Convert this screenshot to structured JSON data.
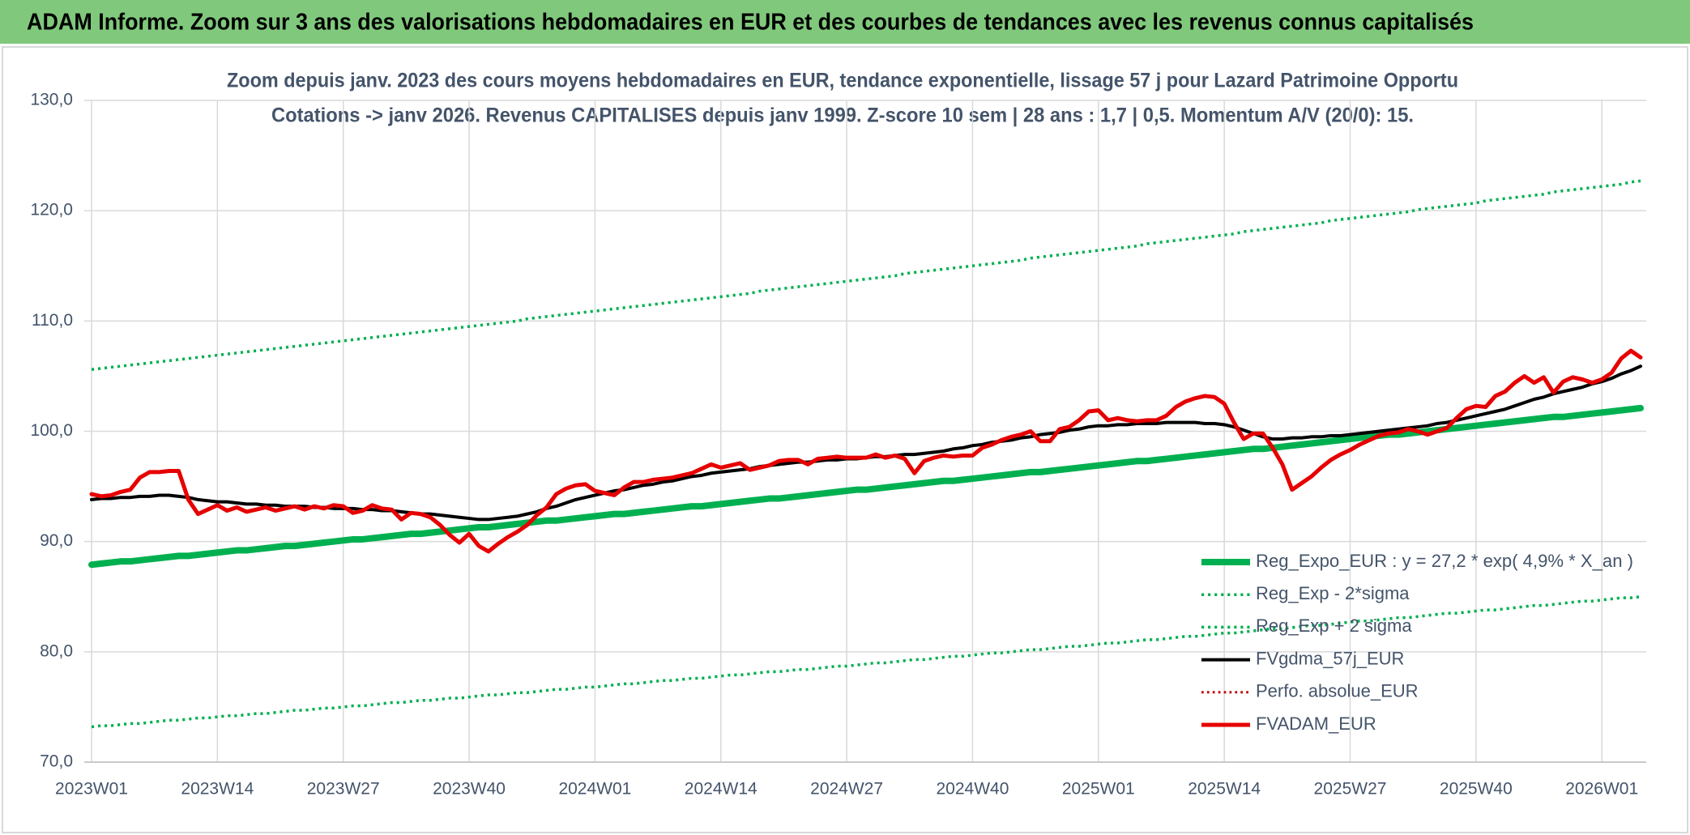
{
  "header": {
    "title": "ADAM Informe. Zoom sur 3 ans des valorisations hebdomadaires en EUR et des courbes de tendances avec les revenus connus capitalisés"
  },
  "chart_data": {
    "type": "line",
    "title": "Zoom depuis janv. 2023 des cours moyens hebdomadaires en EUR, tendance exponentielle, lissage 57 j pour Lazard Patrimoine Opportu",
    "subtitle": "Cotations -> janv 2026. Revenus CAPITALISES depuis janv 1999. Z-score 10 sem | 28 ans : 1,7 | 0,5. Momentum A/V (20/0): 15.",
    "categories": [
      "2023W01",
      null,
      null,
      null,
      null,
      null,
      null,
      null,
      null,
      null,
      null,
      null,
      null,
      "2023W14",
      null,
      null,
      null,
      null,
      null,
      null,
      null,
      null,
      null,
      null,
      null,
      null,
      "2023W27",
      null,
      null,
      null,
      null,
      null,
      null,
      null,
      null,
      null,
      null,
      null,
      null,
      "2023W40",
      null,
      null,
      null,
      null,
      null,
      null,
      null,
      null,
      null,
      null,
      null,
      null,
      "2024W01",
      null,
      null,
      null,
      null,
      null,
      null,
      null,
      null,
      null,
      null,
      null,
      null,
      "2024W14",
      null,
      null,
      null,
      null,
      null,
      null,
      null,
      null,
      null,
      null,
      null,
      null,
      "2024W27",
      null,
      null,
      null,
      null,
      null,
      null,
      null,
      null,
      null,
      null,
      null,
      null,
      "2024W40",
      null,
      null,
      null,
      null,
      null,
      null,
      null,
      null,
      null,
      null,
      null,
      null,
      "2025W01",
      null,
      null,
      null,
      null,
      null,
      null,
      null,
      null,
      null,
      null,
      null,
      null,
      "2025W14",
      null,
      null,
      null,
      null,
      null,
      null,
      null,
      null,
      null,
      null,
      null,
      null,
      "2025W27",
      null,
      null,
      null,
      null,
      null,
      null,
      null,
      null,
      null,
      null,
      null,
      null,
      "2025W40",
      null,
      null,
      null,
      null,
      null,
      null,
      null,
      null,
      null,
      null,
      null,
      null,
      "2026W01",
      null,
      null,
      null,
      null
    ],
    "series": [
      {
        "name": "Reg_Expo_EUR : y = 27,2 * exp( 4,9% *  X_an )",
        "color": "#00b050",
        "width": 8,
        "dash": "solid",
        "values": [
          87.9,
          88.0,
          88.1,
          88.2,
          88.2,
          88.3,
          88.4,
          88.5,
          88.6,
          88.7,
          88.7,
          88.8,
          88.9,
          89.0,
          89.1,
          89.2,
          89.2,
          89.3,
          89.4,
          89.5,
          89.6,
          89.6,
          89.7,
          89.8,
          89.9,
          90.0,
          90.1,
          90.2,
          90.2,
          90.3,
          90.4,
          90.5,
          90.6,
          90.7,
          90.7,
          90.8,
          90.9,
          91.0,
          91.1,
          91.2,
          91.3,
          91.3,
          91.4,
          91.5,
          91.6,
          91.7,
          91.8,
          91.9,
          91.9,
          92.0,
          92.1,
          92.2,
          92.3,
          92.4,
          92.5,
          92.5,
          92.6,
          92.7,
          92.8,
          92.9,
          93.0,
          93.1,
          93.2,
          93.2,
          93.3,
          93.4,
          93.5,
          93.6,
          93.7,
          93.8,
          93.9,
          93.9,
          94.0,
          94.1,
          94.2,
          94.3,
          94.4,
          94.5,
          94.6,
          94.7,
          94.7,
          94.8,
          94.9,
          95.0,
          95.1,
          95.2,
          95.3,
          95.4,
          95.5,
          95.5,
          95.6,
          95.7,
          95.8,
          95.9,
          96.0,
          96.1,
          96.2,
          96.3,
          96.3,
          96.4,
          96.5,
          96.6,
          96.7,
          96.8,
          96.9,
          97.0,
          97.1,
          97.2,
          97.3,
          97.3,
          97.4,
          97.5,
          97.6,
          97.7,
          97.8,
          97.9,
          98.0,
          98.1,
          98.2,
          98.3,
          98.4,
          98.4,
          98.5,
          98.6,
          98.7,
          98.8,
          98.9,
          99.0,
          99.1,
          99.2,
          99.3,
          99.4,
          99.5,
          99.6,
          99.7,
          99.7,
          99.8,
          99.9,
          100.0,
          100.1,
          100.2,
          100.3,
          100.4,
          100.5,
          100.6,
          100.7,
          100.8,
          100.9,
          101.0,
          101.1,
          101.2,
          101.3,
          101.3,
          101.4,
          101.5,
          101.6,
          101.7,
          101.8,
          101.9,
          102.0,
          102.1
        ]
      },
      {
        "name": "Reg_Exp - 2*sigma",
        "color": "#00b050",
        "width": 3.5,
        "dash": "dotted",
        "values": [
          73.2,
          73.3,
          73.3,
          73.4,
          73.5,
          73.5,
          73.6,
          73.7,
          73.8,
          73.8,
          73.9,
          74.0,
          74.0,
          74.1,
          74.2,
          74.2,
          74.3,
          74.4,
          74.4,
          74.5,
          74.6,
          74.7,
          74.7,
          74.8,
          74.9,
          74.9,
          75.0,
          75.1,
          75.1,
          75.2,
          75.3,
          75.4,
          75.4,
          75.5,
          75.6,
          75.6,
          75.7,
          75.8,
          75.8,
          75.9,
          76.0,
          76.1,
          76.1,
          76.2,
          76.3,
          76.3,
          76.4,
          76.5,
          76.6,
          76.6,
          76.7,
          76.8,
          76.8,
          76.9,
          77.0,
          77.1,
          77.1,
          77.2,
          77.3,
          77.4,
          77.4,
          77.5,
          77.6,
          77.6,
          77.7,
          77.8,
          77.9,
          77.9,
          78.0,
          78.1,
          78.2,
          78.2,
          78.3,
          78.4,
          78.4,
          78.5,
          78.6,
          78.7,
          78.7,
          78.8,
          78.9,
          79.0,
          79.0,
          79.1,
          79.2,
          79.3,
          79.3,
          79.4,
          79.5,
          79.6,
          79.6,
          79.7,
          79.8,
          79.9,
          79.9,
          80.0,
          80.1,
          80.2,
          80.2,
          80.3,
          80.4,
          80.5,
          80.5,
          80.6,
          80.7,
          80.8,
          80.8,
          80.9,
          81.0,
          81.1,
          81.1,
          81.2,
          81.3,
          81.4,
          81.4,
          81.5,
          81.6,
          81.7,
          81.7,
          81.8,
          81.9,
          82.0,
          82.1,
          82.1,
          82.2,
          82.3,
          82.4,
          82.4,
          82.5,
          82.6,
          82.7,
          82.8,
          82.8,
          82.9,
          83.0,
          83.1,
          83.1,
          83.2,
          83.3,
          83.4,
          83.5,
          83.5,
          83.6,
          83.7,
          83.8,
          83.8,
          83.9,
          84.0,
          84.1,
          84.2,
          84.2,
          84.3,
          84.4,
          84.5,
          84.6,
          84.6,
          84.7,
          84.8,
          84.9,
          84.9,
          85.0
        ]
      },
      {
        "name": "Reg_Exp + 2 sigma",
        "color": "#00b050",
        "width": 3.5,
        "dash": "dotted",
        "values": [
          105.6,
          105.7,
          105.8,
          105.9,
          106.0,
          106.1,
          106.2,
          106.3,
          106.4,
          106.5,
          106.6,
          106.7,
          106.8,
          106.9,
          107.0,
          107.1,
          107.2,
          107.3,
          107.4,
          107.5,
          107.6,
          107.7,
          107.8,
          107.9,
          108.0,
          108.1,
          108.2,
          108.3,
          108.4,
          108.5,
          108.6,
          108.7,
          108.8,
          108.9,
          109.0,
          109.1,
          109.2,
          109.3,
          109.4,
          109.5,
          109.6,
          109.7,
          109.8,
          109.9,
          110.0,
          110.2,
          110.3,
          110.4,
          110.5,
          110.6,
          110.7,
          110.8,
          110.9,
          111.0,
          111.1,
          111.2,
          111.3,
          111.4,
          111.5,
          111.6,
          111.7,
          111.8,
          111.9,
          112.0,
          112.1,
          112.2,
          112.3,
          112.4,
          112.5,
          112.7,
          112.8,
          112.9,
          113.0,
          113.1,
          113.2,
          113.3,
          113.4,
          113.5,
          113.6,
          113.7,
          113.8,
          113.9,
          114.0,
          114.1,
          114.3,
          114.4,
          114.5,
          114.6,
          114.7,
          114.8,
          114.9,
          115.0,
          115.1,
          115.2,
          115.3,
          115.4,
          115.5,
          115.7,
          115.8,
          115.9,
          116.0,
          116.1,
          116.2,
          116.3,
          116.4,
          116.5,
          116.6,
          116.7,
          116.8,
          117.0,
          117.1,
          117.2,
          117.3,
          117.4,
          117.5,
          117.6,
          117.7,
          117.8,
          117.9,
          118.1,
          118.2,
          118.3,
          118.4,
          118.5,
          118.6,
          118.7,
          118.8,
          118.9,
          119.1,
          119.2,
          119.3,
          119.4,
          119.5,
          119.6,
          119.7,
          119.8,
          119.9,
          120.1,
          120.2,
          120.3,
          120.4,
          120.5,
          120.6,
          120.7,
          120.9,
          121.0,
          121.1,
          121.2,
          121.3,
          121.4,
          121.5,
          121.7,
          121.8,
          121.9,
          122.0,
          122.1,
          122.2,
          122.3,
          122.4,
          122.6,
          122.7
        ]
      },
      {
        "name": "FVgdma_57j_EUR",
        "color": "#000000",
        "width": 4,
        "dash": "solid",
        "values": [
          93.8,
          93.9,
          93.9,
          94.0,
          94.0,
          94.1,
          94.1,
          94.2,
          94.2,
          94.1,
          94.0,
          93.8,
          93.7,
          93.6,
          93.6,
          93.5,
          93.4,
          93.4,
          93.3,
          93.3,
          93.2,
          93.2,
          93.2,
          93.1,
          93.1,
          93.0,
          93.0,
          93.0,
          92.9,
          92.9,
          92.8,
          92.8,
          92.7,
          92.6,
          92.5,
          92.5,
          92.4,
          92.3,
          92.2,
          92.1,
          92.0,
          92.0,
          92.1,
          92.2,
          92.3,
          92.5,
          92.7,
          93.0,
          93.2,
          93.5,
          93.8,
          94.0,
          94.2,
          94.4,
          94.6,
          94.7,
          94.9,
          95.1,
          95.2,
          95.4,
          95.5,
          95.7,
          95.9,
          96.0,
          96.2,
          96.3,
          96.4,
          96.5,
          96.6,
          96.8,
          96.9,
          97.0,
          97.1,
          97.2,
          97.2,
          97.3,
          97.4,
          97.4,
          97.5,
          97.5,
          97.6,
          97.7,
          97.7,
          97.8,
          97.9,
          97.9,
          98.0,
          98.1,
          98.2,
          98.4,
          98.5,
          98.7,
          98.8,
          99.0,
          99.1,
          99.2,
          99.4,
          99.5,
          99.7,
          99.8,
          99.9,
          100.1,
          100.2,
          100.4,
          100.5,
          100.5,
          100.6,
          100.6,
          100.7,
          100.7,
          100.7,
          100.8,
          100.8,
          100.8,
          100.8,
          100.7,
          100.7,
          100.6,
          100.4,
          100.1,
          99.8,
          99.5,
          99.3,
          99.3,
          99.4,
          99.4,
          99.5,
          99.5,
          99.6,
          99.6,
          99.7,
          99.8,
          99.9,
          100.0,
          100.1,
          100.2,
          100.3,
          100.4,
          100.5,
          100.7,
          100.8,
          101.0,
          101.2,
          101.4,
          101.6,
          101.8,
          102.0,
          102.3,
          102.6,
          102.9,
          103.1,
          103.4,
          103.6,
          103.8,
          104.0,
          104.3,
          104.5,
          104.8,
          105.2,
          105.5,
          105.9
        ]
      },
      {
        "name": "Perfo. absolue_EUR",
        "color": "#c00000",
        "width": 3,
        "dash": "dotted",
        "values": [
          null,
          null,
          null,
          null,
          null,
          null,
          null,
          null,
          null,
          null,
          null,
          null,
          null,
          null,
          null,
          null,
          null,
          null,
          null,
          null,
          null,
          null,
          null,
          null,
          null,
          null,
          null,
          null,
          null,
          null,
          null,
          null,
          null,
          null,
          null,
          null,
          null,
          null,
          null,
          null,
          null,
          null,
          null,
          null,
          null,
          null,
          null,
          null,
          null,
          null,
          null,
          null,
          null,
          null,
          null,
          null,
          null,
          null,
          null,
          null,
          null,
          null,
          null,
          null,
          null,
          null,
          null,
          null,
          null,
          null,
          null,
          null,
          null,
          null,
          null,
          null,
          null,
          null,
          null,
          null,
          null,
          null,
          null,
          null,
          null,
          null,
          null,
          null,
          null,
          null,
          null,
          null,
          null,
          null,
          null,
          null,
          null,
          null,
          null,
          null,
          null,
          null,
          null,
          null,
          null,
          null,
          null,
          null,
          null,
          null,
          null,
          null,
          null,
          null,
          null,
          null,
          null,
          null,
          null,
          null,
          null,
          null,
          null,
          null,
          null,
          null,
          null,
          null,
          null,
          null,
          null,
          null,
          null,
          null,
          null,
          null,
          null,
          null,
          null,
          null,
          null,
          null,
          null,
          null,
          null,
          null,
          null,
          null,
          null,
          null,
          null,
          null,
          null,
          null,
          null,
          null,
          null,
          null,
          null,
          null,
          null
        ]
      },
      {
        "name": "FVADAM_EUR",
        "color": "#e60000",
        "width": 5,
        "dash": "solid",
        "values": [
          94.3,
          94.1,
          94.2,
          94.5,
          94.7,
          95.8,
          96.3,
          96.3,
          96.4,
          96.4,
          93.8,
          92.5,
          92.9,
          93.3,
          92.8,
          93.1,
          92.7,
          92.9,
          93.1,
          92.8,
          93.0,
          93.2,
          92.9,
          93.2,
          93.0,
          93.3,
          93.2,
          92.6,
          92.8,
          93.3,
          93.0,
          92.9,
          92.0,
          92.6,
          92.5,
          92.2,
          91.5,
          90.6,
          89.9,
          90.7,
          89.6,
          89.1,
          89.8,
          90.4,
          90.9,
          91.5,
          92.4,
          93.1,
          94.3,
          94.8,
          95.1,
          95.2,
          94.6,
          94.4,
          94.2,
          94.9,
          95.4,
          95.4,
          95.6,
          95.7,
          95.8,
          96.0,
          96.2,
          96.6,
          97.0,
          96.7,
          96.9,
          97.1,
          96.5,
          96.7,
          96.9,
          97.3,
          97.4,
          97.4,
          97.0,
          97.5,
          97.6,
          97.7,
          97.6,
          97.6,
          97.6,
          97.9,
          97.6,
          97.8,
          97.5,
          96.2,
          97.3,
          97.6,
          97.8,
          97.7,
          97.8,
          97.8,
          98.5,
          98.8,
          99.2,
          99.5,
          99.7,
          100.0,
          99.1,
          99.1,
          100.2,
          100.4,
          101.0,
          101.8,
          101.9,
          101.0,
          101.2,
          101.0,
          100.9,
          101.0,
          101.0,
          101.4,
          102.2,
          102.7,
          103.0,
          103.2,
          103.1,
          102.5,
          100.8,
          99.3,
          99.8,
          99.8,
          98.5,
          97.0,
          94.7,
          95.3,
          95.9,
          96.7,
          97.4,
          97.9,
          98.3,
          98.8,
          99.2,
          99.6,
          99.8,
          99.9,
          100.2,
          100.0,
          99.7,
          100.0,
          100.3,
          101.2,
          102.0,
          102.3,
          102.2,
          103.2,
          103.6,
          104.4,
          105.0,
          104.4,
          104.9,
          103.5,
          104.5,
          104.9,
          104.7,
          104.4,
          104.7,
          105.3,
          106.6,
          107.3,
          106.7
        ]
      }
    ],
    "ylim": [
      70,
      130
    ],
    "yticks": [
      {
        "value": 70,
        "label": "70,0"
      },
      {
        "value": 80,
        "label": "80,0"
      },
      {
        "value": 90,
        "label": "90,0"
      },
      {
        "value": 100,
        "label": "100,0"
      },
      {
        "value": 110,
        "label": "110,0"
      },
      {
        "value": 120,
        "label": "120,0"
      },
      {
        "value": 130,
        "label": "130,0"
      }
    ],
    "grid": true,
    "legend": "lower right"
  }
}
